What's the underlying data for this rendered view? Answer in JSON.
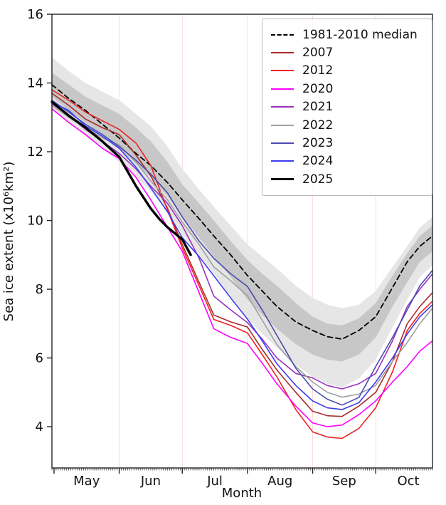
{
  "chart_data": {
    "type": "line",
    "title": "",
    "xlabel": "Month",
    "ylabel": "Sea ice extent (x10⁶km²)",
    "ylim": [
      2.8,
      16
    ],
    "yticks": [
      4,
      6,
      8,
      10,
      12,
      14,
      16
    ],
    "x_unit": "days since Apr 30",
    "x_domain": [
      0,
      181
    ],
    "xticks": [
      {
        "label": "May",
        "start_day": 1,
        "label_day": 16.5
      },
      {
        "label": "Jun",
        "start_day": 32,
        "label_day": 47
      },
      {
        "label": "Jul",
        "start_day": 62,
        "label_day": 77.5
      },
      {
        "label": "Aug",
        "start_day": 93,
        "label_day": 108.5
      },
      {
        "label": "Sep",
        "start_day": 124,
        "label_day": 139
      },
      {
        "label": "Oct",
        "start_day": 154,
        "label_day": 169.5
      }
    ],
    "gridline_days": [
      32,
      62,
      93,
      124,
      154
    ],
    "grid_color": "#ffd9d9",
    "grid_on": true,
    "legend_position": "top-right",
    "bands": {
      "description": "1981-2010 climatology shading around the median",
      "light_color": "#e6e6e6",
      "dark_color": "#c7c7c7",
      "x": [
        0,
        8,
        16,
        24,
        32,
        40,
        47,
        55,
        62,
        70,
        77,
        85,
        93,
        100,
        107,
        116,
        124,
        131,
        138,
        146,
        154,
        162,
        169,
        175,
        181
      ],
      "light_top": [
        14.75,
        14.35,
        14.0,
        13.75,
        13.5,
        13.1,
        12.75,
        12.15,
        11.5,
        10.9,
        10.4,
        9.85,
        9.3,
        8.95,
        8.6,
        8.1,
        7.75,
        7.55,
        7.45,
        7.55,
        7.95,
        8.65,
        9.25,
        9.8,
        10.1
      ],
      "dark_top": [
        14.3,
        13.95,
        13.6,
        13.35,
        13.1,
        12.7,
        12.3,
        11.7,
        11.05,
        10.5,
        10.0,
        9.4,
        8.85,
        8.45,
        8.1,
        7.6,
        7.2,
        7.0,
        6.95,
        7.15,
        7.6,
        8.4,
        9.05,
        9.55,
        9.85
      ],
      "dark_bottom": [
        13.6,
        13.2,
        12.85,
        12.5,
        12.1,
        11.65,
        11.25,
        10.7,
        10.1,
        9.5,
        8.95,
        8.35,
        7.7,
        7.25,
        6.85,
        6.4,
        6.1,
        5.95,
        5.9,
        6.1,
        6.6,
        7.5,
        8.2,
        8.8,
        9.1
      ],
      "light_bottom": [
        13.25,
        12.85,
        12.45,
        12.1,
        11.7,
        11.25,
        10.85,
        10.25,
        9.6,
        9.0,
        8.45,
        7.8,
        7.15,
        6.7,
        6.3,
        5.8,
        5.45,
        5.25,
        5.15,
        5.4,
        5.95,
        6.9,
        7.7,
        8.35,
        8.7
      ]
    },
    "series": [
      {
        "name": "1981-2010 median",
        "color": "#000000",
        "dashed": true,
        "width": 1.8,
        "x": [
          0,
          8,
          16,
          24,
          32,
          40,
          47,
          55,
          62,
          70,
          77,
          85,
          93,
          100,
          107,
          116,
          124,
          131,
          138,
          146,
          154,
          162,
          169,
          175,
          181
        ],
        "y": [
          13.95,
          13.55,
          13.2,
          12.8,
          12.4,
          11.95,
          11.6,
          11.1,
          10.6,
          10.05,
          9.55,
          9.0,
          8.4,
          7.95,
          7.5,
          7.05,
          6.8,
          6.62,
          6.55,
          6.8,
          7.2,
          8.05,
          8.8,
          9.25,
          9.55
        ]
      },
      {
        "name": "2007",
        "color": "#aa2a2a",
        "dashed": false,
        "width": 1.6,
        "x": [
          0,
          8,
          16,
          24,
          32,
          40,
          47,
          55,
          62,
          70,
          77,
          85,
          93,
          100,
          107,
          116,
          124,
          131,
          138,
          146,
          154,
          162,
          169,
          175,
          181
        ],
        "y": [
          13.7,
          13.35,
          12.95,
          12.7,
          12.5,
          11.9,
          11.3,
          10.35,
          9.3,
          8.2,
          7.25,
          7.05,
          6.9,
          6.25,
          5.65,
          5.0,
          4.45,
          4.32,
          4.3,
          4.6,
          5.0,
          5.9,
          7.0,
          7.5,
          7.9
        ]
      },
      {
        "name": "2012",
        "color": "#ee2222",
        "dashed": false,
        "width": 1.6,
        "x": [
          0,
          8,
          16,
          24,
          32,
          40,
          47,
          55,
          62,
          70,
          77,
          85,
          93,
          100,
          107,
          116,
          124,
          131,
          138,
          146,
          154,
          162,
          169,
          175,
          181
        ],
        "y": [
          13.8,
          13.5,
          13.15,
          12.9,
          12.65,
          12.25,
          11.6,
          10.3,
          9.2,
          8.1,
          7.12,
          6.95,
          6.73,
          6.1,
          5.45,
          4.5,
          3.85,
          3.7,
          3.66,
          3.95,
          4.55,
          5.6,
          6.8,
          7.3,
          7.65
        ]
      },
      {
        "name": "2020",
        "color": "#ff00ff",
        "dashed": false,
        "width": 1.6,
        "x": [
          0,
          8,
          16,
          24,
          32,
          40,
          47,
          55,
          62,
          70,
          77,
          85,
          93,
          100,
          107,
          116,
          124,
          131,
          138,
          146,
          154,
          162,
          169,
          175,
          181
        ],
        "y": [
          13.25,
          12.85,
          12.5,
          12.1,
          11.8,
          11.25,
          10.6,
          9.8,
          9.1,
          7.9,
          6.85,
          6.6,
          6.42,
          5.85,
          5.25,
          4.6,
          4.11,
          4.0,
          4.05,
          4.35,
          4.75,
          5.3,
          5.75,
          6.2,
          6.5
        ]
      },
      {
        "name": "2021",
        "color": "#9933bb",
        "dashed": false,
        "width": 1.6,
        "x": [
          0,
          8,
          16,
          24,
          32,
          40,
          47,
          55,
          62,
          70,
          77,
          85,
          93,
          100,
          107,
          116,
          124,
          131,
          138,
          146,
          154,
          162,
          169,
          175,
          181
        ],
        "y": [
          13.4,
          13.05,
          12.65,
          12.3,
          11.95,
          11.5,
          11.0,
          10.5,
          9.85,
          8.9,
          7.8,
          7.4,
          7.03,
          6.55,
          6.0,
          5.55,
          5.42,
          5.2,
          5.1,
          5.25,
          5.55,
          6.5,
          7.5,
          8.0,
          8.45
        ]
      },
      {
        "name": "2022",
        "color": "#a0a0a0",
        "dashed": false,
        "width": 1.6,
        "x": [
          0,
          8,
          16,
          24,
          32,
          40,
          47,
          55,
          62,
          70,
          77,
          85,
          93,
          100,
          107,
          116,
          124,
          131,
          138,
          146,
          154,
          162,
          169,
          175,
          181
        ],
        "y": [
          13.35,
          13.0,
          12.7,
          12.4,
          12.2,
          11.7,
          11.15,
          10.6,
          9.95,
          9.3,
          8.65,
          8.25,
          7.81,
          7.1,
          6.39,
          5.75,
          5.3,
          5.0,
          4.86,
          4.95,
          5.2,
          5.9,
          6.45,
          7.0,
          7.45
        ]
      },
      {
        "name": "2023",
        "color": "#4a4aae",
        "dashed": false,
        "width": 1.6,
        "x": [
          0,
          8,
          16,
          24,
          32,
          40,
          47,
          55,
          62,
          70,
          77,
          85,
          93,
          100,
          107,
          116,
          124,
          131,
          138,
          146,
          154,
          162,
          169,
          175,
          181
        ],
        "y": [
          13.5,
          13.15,
          12.8,
          12.5,
          12.15,
          11.75,
          11.35,
          10.8,
          10.1,
          9.4,
          8.9,
          8.45,
          8.08,
          7.4,
          6.66,
          5.7,
          5.1,
          4.8,
          4.63,
          4.85,
          5.75,
          6.6,
          7.4,
          8.1,
          8.55
        ]
      },
      {
        "name": "2024",
        "color": "#3c3cf0",
        "dashed": false,
        "width": 1.6,
        "x": [
          0,
          8,
          16,
          24,
          32,
          40,
          47,
          55,
          62,
          70,
          77,
          85,
          93,
          100,
          107,
          116,
          124,
          131,
          138,
          146,
          154,
          162,
          169,
          175,
          181
        ],
        "y": [
          13.45,
          13.2,
          12.75,
          12.45,
          12.1,
          11.55,
          10.95,
          10.25,
          9.5,
          8.95,
          8.39,
          7.75,
          7.13,
          6.5,
          5.83,
          5.2,
          4.75,
          4.55,
          4.5,
          4.7,
          5.3,
          6.0,
          6.7,
          7.2,
          7.55
        ]
      },
      {
        "name": "2025",
        "color": "#000000",
        "dashed": false,
        "width": 3.4,
        "x": [
          0,
          8,
          16,
          24,
          32,
          40,
          47,
          51,
          55,
          62,
          66
        ],
        "y": [
          13.45,
          13.05,
          12.7,
          12.3,
          11.85,
          11.0,
          10.35,
          10.05,
          9.8,
          9.45,
          9.0
        ]
      }
    ]
  }
}
